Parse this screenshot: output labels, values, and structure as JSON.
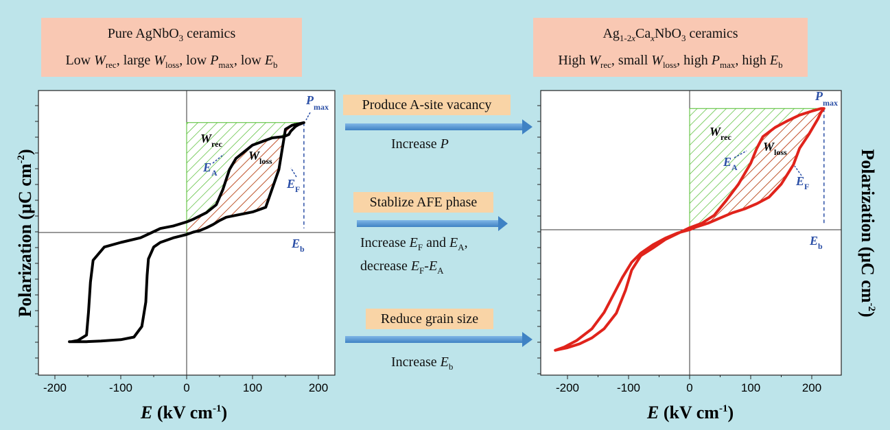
{
  "left_box": {
    "line1_pre": "Pure AgNbO",
    "line1_sub": "3",
    "line1_post": " ceramics",
    "line2": [
      {
        "t": "Low "
      },
      {
        "i": "W"
      },
      {
        "s": "rec"
      },
      {
        "t": ", large "
      },
      {
        "i": "W"
      },
      {
        "s": "loss"
      },
      {
        "t": ", low "
      },
      {
        "i": "P"
      },
      {
        "s": "max"
      },
      {
        "t": ", low "
      },
      {
        "i": "E"
      },
      {
        "s": "b"
      }
    ]
  },
  "right_box": {
    "line1": [
      {
        "t": "Ag"
      },
      {
        "s": "1-2"
      },
      {
        "si": "x"
      },
      {
        "t": "Ca"
      },
      {
        "si": "x"
      },
      {
        "t": "NbO"
      },
      {
        "s": "3"
      },
      {
        "t": "  ceramics"
      }
    ],
    "line2": [
      {
        "t": "High "
      },
      {
        "i": "W"
      },
      {
        "s": "rec"
      },
      {
        "t": ", small "
      },
      {
        "i": "W"
      },
      {
        "s": "loss"
      },
      {
        "t": ", high "
      },
      {
        "i": "P"
      },
      {
        "s": "max"
      },
      {
        "t": ", high "
      },
      {
        "i": "E"
      },
      {
        "s": "b"
      }
    ]
  },
  "middle": {
    "step1_tag": "Produce A-site vacancy",
    "step1_effect": [
      {
        "t": "Increase "
      },
      {
        "i": "P"
      }
    ],
    "step2_tag": "Stablize AFE phase",
    "step2_effect_l1": [
      {
        "t": "Increase "
      },
      {
        "i": "E"
      },
      {
        "s": "F"
      },
      {
        "t": " and "
      },
      {
        "i": "E"
      },
      {
        "s": "A"
      },
      {
        "t": ","
      }
    ],
    "step2_effect_l2": [
      {
        "t": "decrease "
      },
      {
        "i": "E"
      },
      {
        "s": "F"
      },
      {
        "t": "-"
      },
      {
        "i": "E"
      },
      {
        "s": "A"
      }
    ],
    "step3_tag": "Reduce grain size",
    "step3_effect": [
      {
        "t": "Increase "
      },
      {
        "i": "E"
      },
      {
        "s": "b"
      }
    ]
  },
  "annotations": {
    "w_main": "W",
    "w_rec_sub": "rec",
    "w_loss_sub": "loss",
    "p_main": "P",
    "p_sub": "max",
    "e_main": "E",
    "ea_sub": "A",
    "ef_sub": "F",
    "eb_sub": "b"
  },
  "chart_data": [
    {
      "type": "line",
      "xlabel": "E (kV cm-1)",
      "ylabel": "Polarization (μC cm-2)",
      "xlim": [
        -225,
        225
      ],
      "x_ticks": [
        "-200",
        "-100",
        "0",
        "100",
        "200"
      ],
      "y_tick_labels": false,
      "series": [
        {
          "color": "#000000"
        }
      ],
      "E_b": 178,
      "E_A": 60,
      "E_F": 150,
      "ramp_end_x": 178,
      "hysteresis_x": [
        -178,
        -175,
        -165,
        -152,
        -149,
        -146,
        -142,
        -125,
        -100,
        -70,
        -55,
        -40,
        -20,
        0,
        10,
        30,
        45,
        55,
        65,
        75,
        100,
        130,
        148,
        155,
        158,
        165,
        170,
        178,
        178,
        160,
        150,
        140,
        120,
        100,
        80,
        65,
        60,
        50,
        40,
        30,
        20,
        10,
        0,
        -20,
        -40,
        -50,
        -58,
        -60,
        -62,
        -68,
        -80,
        -100,
        -130,
        -152,
        -170,
        -178
      ],
      "hysteresis_y": [
        -16.5,
        -16.5,
        -16.3,
        -15.5,
        -12,
        -7.5,
        -4.2,
        -2.2,
        -1.5,
        -0.8,
        -0.1,
        0.6,
        1.0,
        1.6,
        2.0,
        3.0,
        4.2,
        6.5,
        9.5,
        11.2,
        13.2,
        14.3,
        14.5,
        14.8,
        15.3,
        16.0,
        16.3,
        16.6,
        16.6,
        16.2,
        15.6,
        9.5,
        3.8,
        3.1,
        2.7,
        2.4,
        2.3,
        1.8,
        1.2,
        0.7,
        0.3,
        0.05,
        -0.3,
        -0.8,
        -1.5,
        -2.2,
        -4.0,
        -6.5,
        -10.5,
        -14.2,
        -15.8,
        -16.2,
        -16.4,
        -16.5,
        -16.5,
        -16.5
      ]
    },
    {
      "type": "line",
      "xlabel": "E (kV cm-1)",
      "ylabel": "Polarization (μC cm-2)",
      "xlim": [
        -230,
        230
      ],
      "x_ticks": [
        "-200",
        "-100",
        "0",
        "100",
        "200"
      ],
      "y_tick_labels": false,
      "series": [
        {
          "color": "#e0231b"
        }
      ],
      "E_b": 220,
      "E_A": 105,
      "E_F": 175,
      "ramp_end_x": 220,
      "hysteresis_x": [
        -220,
        -215,
        -200,
        -180,
        -160,
        -140,
        -120,
        -105,
        -95,
        -80,
        -60,
        -40,
        -20,
        0,
        20,
        40,
        60,
        80,
        100,
        110,
        120,
        140,
        160,
        180,
        200,
        215,
        220,
        220,
        215,
        210,
        195,
        180,
        170,
        150,
        130,
        110,
        90,
        70,
        50,
        30,
        10,
        0,
        -20,
        -40,
        -60,
        -80,
        -95,
        -110,
        -125,
        -140,
        -160,
        -185,
        -205,
        -220
      ],
      "hysteresis_y": [
        -18.5,
        -18.4,
        -18.1,
        -17.5,
        -16.6,
        -15.2,
        -12.8,
        -9.3,
        -6.2,
        -4.0,
        -2.8,
        -1.5,
        -0.6,
        0.3,
        1.0,
        2.2,
        4.5,
        7.0,
        10.2,
        12.5,
        14.3,
        15.7,
        16.7,
        17.6,
        18.2,
        18.6,
        18.6,
        18.6,
        18.0,
        17.0,
        14.6,
        12.5,
        10.0,
        7.0,
        5.0,
        4.0,
        3.2,
        2.6,
        1.8,
        1.0,
        0.4,
        0,
        -0.5,
        -1.3,
        -2.3,
        -3.6,
        -5.0,
        -7.3,
        -10.0,
        -12.7,
        -15.2,
        -17.0,
        -18.0,
        -18.5
      ]
    }
  ]
}
